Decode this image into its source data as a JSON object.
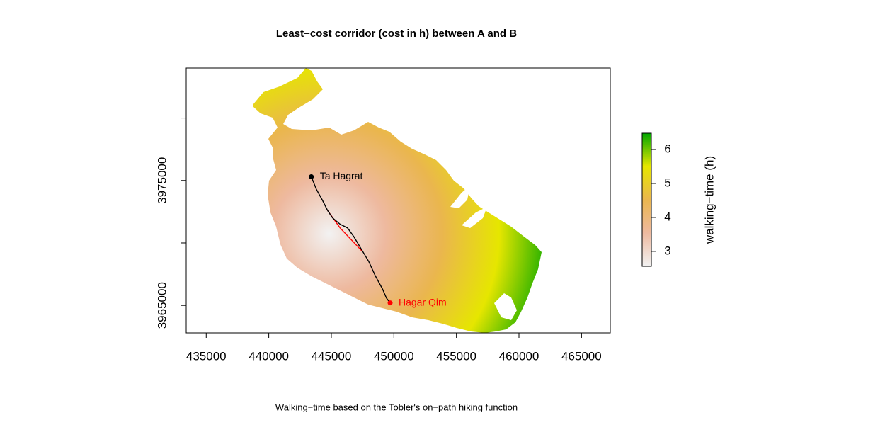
{
  "chart_data": {
    "type": "map",
    "title": "Least−cost corridor (cost in h) between A and B",
    "caption": "Walking−time based on the Tobler's on−path hiking function",
    "xlim": [
      433400,
      467300
    ],
    "ylim": [
      3962800,
      3984000
    ],
    "xticks": [
      435000,
      440000,
      445000,
      450000,
      455000,
      460000,
      465000
    ],
    "yticks": [
      3965000,
      {
        "value": 3970000,
        "label": null
      },
      3975000,
      {
        "value": 3980000,
        "label": null
      }
    ],
    "points": [
      {
        "name": "Ta Hagrat",
        "x": 443400,
        "y": 3975300,
        "color": "#000000"
      },
      {
        "name": "Hagar Qim",
        "x": 449700,
        "y": 3965200,
        "color": "#ff0000"
      }
    ],
    "series": [
      {
        "color": "#ff0000",
        "x": [
          444700,
          445700,
          447500
        ],
        "y": [
          3972600,
          3971200,
          3969300
        ]
      },
      {
        "color": "#000000",
        "x": [
          443400,
          443800,
          444300,
          444700,
          445100,
          445700,
          446300,
          446800,
          447400,
          448000,
          448500,
          449100,
          449400,
          449700
        ],
        "y": [
          3975300,
          3974300,
          3973400,
          3972600,
          3972000,
          3971500,
          3971200,
          3970500,
          3969500,
          3968500,
          3967400,
          3966300,
          3965600,
          3965200
        ]
      }
    ],
    "colorbar": {
      "label": "walking−time (h)",
      "lim": [
        2.56,
        6.48
      ],
      "ticks": [
        3,
        4,
        5,
        6
      ],
      "colors": [
        "#F2F2F2",
        "#EEB99F",
        "#EAB64E",
        "#E6E600",
        "#00A600"
      ]
    }
  }
}
